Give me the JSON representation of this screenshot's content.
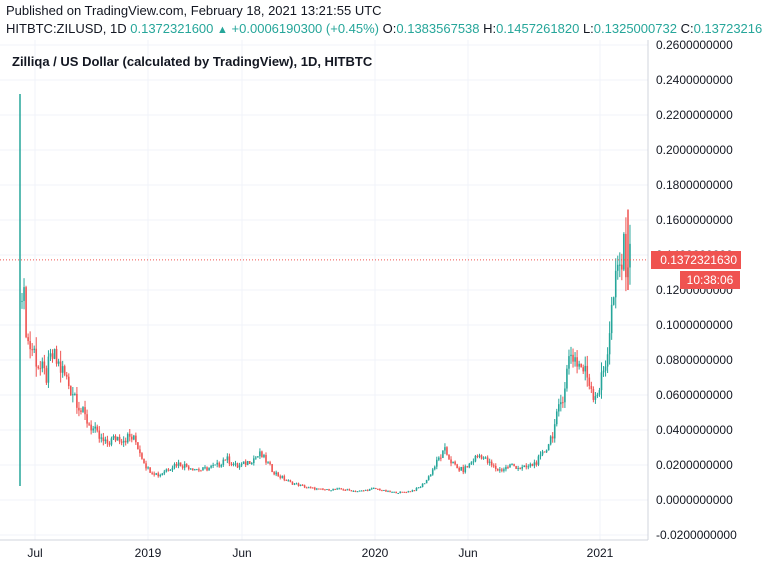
{
  "published": "Published on TradingView.com, February 18, 2021 13:21:55 UTC",
  "quote": {
    "symbol": "HITBTC:ZILUSD, 1D",
    "last": "0.1372321600",
    "change": "+0.0006190300 (+0.45%)",
    "o_label": "O:",
    "o_value": "0.1383567538",
    "h_label": "H:",
    "h_value": "0.1457261820",
    "l_label": "L:",
    "l_value": "0.1325000732",
    "c_label": "C:",
    "c_value": "0.13723216",
    "up_arrow_icon": "triangle-up-icon",
    "accent_color": "#26a69a"
  },
  "chart_title": "Zilliqa / US Dollar (calculated by TradingView), 1D, HITBTC",
  "price_tag": "0.1372321630",
  "countdown": "10:38:06",
  "chart_data": {
    "type": "candlestick",
    "y_axis_ticks": [
      "0.2600000000",
      "0.2400000000",
      "0.2200000000",
      "0.2000000000",
      "0.1800000000",
      "0.1600000000",
      "0.1400000000",
      "0.1200000000",
      "0.1000000000",
      "0.0800000000",
      "0.0600000000",
      "0.0400000000",
      "0.0200000000",
      "0.0000000000",
      "-0.0200000000"
    ],
    "x_axis_ticks": [
      "Jul",
      "2019",
      "Jun",
      "2020",
      "Jun",
      "2021"
    ],
    "ylim": [
      -0.02,
      0.26
    ],
    "up_color": "#26a69a",
    "down_color": "#ef5350",
    "last_price": 0.13723216,
    "closes": [
      0.125,
      0.09,
      0.085,
      0.075,
      0.07,
      0.082,
      0.078,
      0.072,
      0.065,
      0.06,
      0.05,
      0.045,
      0.04,
      0.035,
      0.032,
      0.034,
      0.036,
      0.035,
      0.036,
      0.034,
      0.026,
      0.018,
      0.016,
      0.014,
      0.017,
      0.019,
      0.021,
      0.02,
      0.019,
      0.018,
      0.017,
      0.018,
      0.019,
      0.02,
      0.024,
      0.022,
      0.019,
      0.02,
      0.022,
      0.024,
      0.026,
      0.022,
      0.017,
      0.014,
      0.012,
      0.01,
      0.009,
      0.008,
      0.007,
      0.0065,
      0.006,
      0.0058,
      0.006,
      0.0062,
      0.006,
      0.0055,
      0.005,
      0.0052,
      0.0058,
      0.0065,
      0.006,
      0.005,
      0.0045,
      0.0043,
      0.0045,
      0.005,
      0.006,
      0.008,
      0.012,
      0.018,
      0.024,
      0.028,
      0.022,
      0.018,
      0.017,
      0.02,
      0.024,
      0.026,
      0.022,
      0.019,
      0.017,
      0.018,
      0.02,
      0.019,
      0.018,
      0.019,
      0.021,
      0.024,
      0.03,
      0.038,
      0.05,
      0.065,
      0.085,
      0.08,
      0.075,
      0.07,
      0.06,
      0.065,
      0.08,
      0.11,
      0.13,
      0.14,
      0.137
    ]
  }
}
